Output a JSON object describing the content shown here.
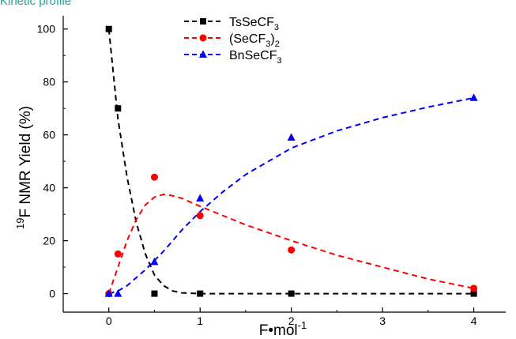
{
  "chart_data": {
    "type": "scatter",
    "title": "Kinetic profile",
    "xlabel": "F•mol",
    "xlabel_sup": "-1",
    "ylabel_sup": "19",
    "ylabel": "F NMR Yield (%)",
    "xlim": [
      -0.5,
      4.35
    ],
    "ylim": [
      -7,
      105
    ],
    "xticks": [
      0,
      1,
      2,
      3,
      4
    ],
    "yticks": [
      0,
      20,
      40,
      60,
      80,
      100
    ],
    "legend_position": "top-center",
    "series": [
      {
        "name": "TsSeCF",
        "name_sub": "3",
        "name_tail": "",
        "color": "#000000",
        "marker": "square",
        "points": [
          [
            0,
            100
          ],
          [
            0.1,
            70
          ],
          [
            0.5,
            0
          ],
          [
            1,
            0
          ],
          [
            2,
            0
          ],
          [
            4,
            0
          ]
        ],
        "fit": [
          [
            0,
            100
          ],
          [
            0.1,
            66
          ],
          [
            0.2,
            44
          ],
          [
            0.3,
            27
          ],
          [
            0.4,
            15
          ],
          [
            0.5,
            7
          ],
          [
            0.6,
            3
          ],
          [
            0.7,
            1
          ],
          [
            0.8,
            0.3
          ],
          [
            1,
            0
          ],
          [
            2,
            0
          ],
          [
            4,
            0
          ]
        ]
      },
      {
        "name": "(SeCF",
        "name_sub": "3",
        "name_tail": ")",
        "name_sub2": "2",
        "color": "#ff0000",
        "marker": "circle",
        "points": [
          [
            0,
            0
          ],
          [
            0.1,
            15
          ],
          [
            0.5,
            44
          ],
          [
            1,
            29.5
          ],
          [
            2,
            16.5
          ],
          [
            4,
            2
          ]
        ],
        "fit": [
          [
            0,
            0
          ],
          [
            0.1,
            10
          ],
          [
            0.2,
            20
          ],
          [
            0.3,
            28
          ],
          [
            0.4,
            33.5
          ],
          [
            0.5,
            36.5
          ],
          [
            0.6,
            37.5
          ],
          [
            0.7,
            37
          ],
          [
            0.8,
            36
          ],
          [
            1,
            33
          ],
          [
            1.25,
            29.5
          ],
          [
            1.5,
            26
          ],
          [
            2,
            20
          ],
          [
            2.5,
            14.5
          ],
          [
            3,
            10
          ],
          [
            3.5,
            5.5
          ],
          [
            4,
            2
          ]
        ]
      },
      {
        "name": "BnSeCF",
        "name_sub": "3",
        "name_tail": "",
        "color": "#0000ff",
        "marker": "triangle",
        "points": [
          [
            0,
            0
          ],
          [
            0.1,
            0
          ],
          [
            0.5,
            12
          ],
          [
            1,
            36
          ],
          [
            2,
            59
          ],
          [
            4,
            74
          ]
        ],
        "fit": [
          [
            0,
            0
          ],
          [
            0.1,
            1
          ],
          [
            0.2,
            3
          ],
          [
            0.4,
            9
          ],
          [
            0.6,
            16
          ],
          [
            0.8,
            24
          ],
          [
            1,
            31
          ],
          [
            1.25,
            38.5
          ],
          [
            1.5,
            45
          ],
          [
            2,
            55
          ],
          [
            2.5,
            61.5
          ],
          [
            3,
            66.5
          ],
          [
            3.5,
            70.5
          ],
          [
            4,
            74
          ]
        ]
      }
    ]
  }
}
